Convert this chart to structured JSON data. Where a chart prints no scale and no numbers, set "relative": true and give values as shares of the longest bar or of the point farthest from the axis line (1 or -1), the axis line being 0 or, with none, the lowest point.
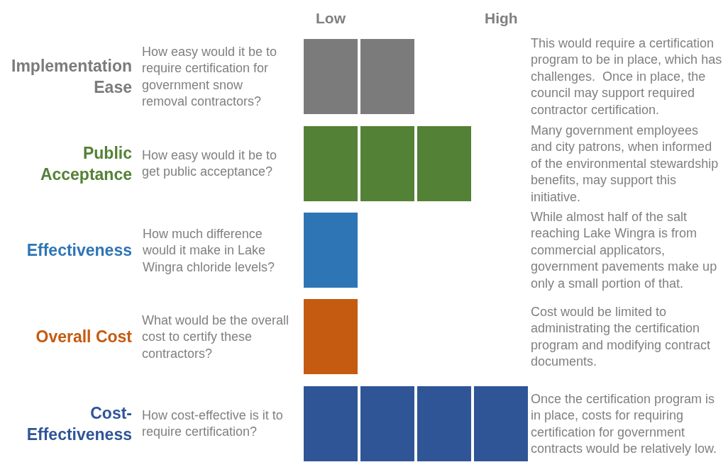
{
  "chart_data": {
    "type": "bar",
    "orientation": "horizontal",
    "stacked": true,
    "relative": true,
    "categories": [
      "Implementation Ease",
      "Public Acceptance",
      "Effectiveness",
      "Overall Cost",
      "Cost-Effectiveness"
    ],
    "series": [
      {
        "values": [
          0.25,
          0.25,
          0.25,
          0.25,
          0.25
        ],
        "colors": [
          "#7b7b7b",
          "#538135",
          "#2e75b6",
          "#c55a11",
          "#2f5597"
        ]
      },
      {
        "values": [
          0.25,
          0.25,
          null,
          null,
          0.25
        ],
        "colors": [
          "#7b7b7b",
          "#538135",
          null,
          null,
          "#2f5597"
        ]
      },
      {
        "values": [
          null,
          0.25,
          null,
          null,
          0.25
        ],
        "colors": [
          null,
          "#538135",
          null,
          null,
          "#2f5597"
        ]
      },
      {
        "values": [
          null,
          null,
          null,
          null,
          0.25
        ],
        "colors": [
          null,
          null,
          null,
          null,
          "#2f5597"
        ]
      }
    ],
    "annotations": [
      "Low",
      "High",
      "How easy would it be to require certification for government snow removal contractors?",
      "This would require a certification program to be in place, which has challenges.  Once in place, the council may support required contractor certification.",
      "How easy would it be to get public acceptance?",
      "Many government employees and city patrons, when informed of the environmental stewardship benefits, may support this initiative.",
      "How much difference would it make in Lake Wingra chloride levels?",
      "While almost half of the salt reaching Lake Wingra is from commercial applicators, government pavements make up only a small portion of that.",
      "What would be the overall cost to certify these contractors?",
      "Cost would be limited to administrating the certification program and modifying contract documents.",
      "How cost-effective is it to require certification?",
      "Once the certification program is in place, costs for requiring certification for government contracts would be relatively low."
    ]
  }
}
